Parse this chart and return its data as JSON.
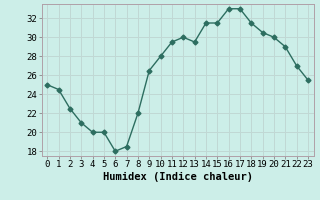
{
  "xlabel": "Humidex (Indice chaleur)",
  "x_values": [
    0,
    1,
    2,
    3,
    4,
    5,
    6,
    7,
    8,
    9,
    10,
    11,
    12,
    13,
    14,
    15,
    16,
    17,
    18,
    19,
    20,
    21,
    22,
    23
  ],
  "y_values": [
    25.0,
    24.5,
    22.5,
    21.0,
    20.0,
    20.0,
    18.0,
    18.5,
    22.0,
    26.5,
    28.0,
    29.5,
    30.0,
    29.5,
    31.5,
    31.5,
    33.0,
    33.0,
    31.5,
    30.5,
    30.0,
    29.0,
    27.0,
    25.5
  ],
  "line_color": "#2d6e60",
  "marker": "D",
  "marker_size": 2.5,
  "bg_color": "#cceee8",
  "grid_color": "#c0d8d4",
  "ylim": [
    17.5,
    33.5
  ],
  "xlim": [
    -0.5,
    23.5
  ],
  "yticks": [
    18,
    20,
    22,
    24,
    26,
    28,
    30,
    32
  ],
  "xtick_labels": [
    "0",
    "1",
    "2",
    "3",
    "4",
    "5",
    "6",
    "7",
    "8",
    "9",
    "10",
    "11",
    "12",
    "13",
    "14",
    "15",
    "16",
    "17",
    "18",
    "19",
    "20",
    "21",
    "22",
    "23"
  ],
  "tick_fontsize": 6.5,
  "xlabel_fontsize": 7.5,
  "line_width": 1.0
}
